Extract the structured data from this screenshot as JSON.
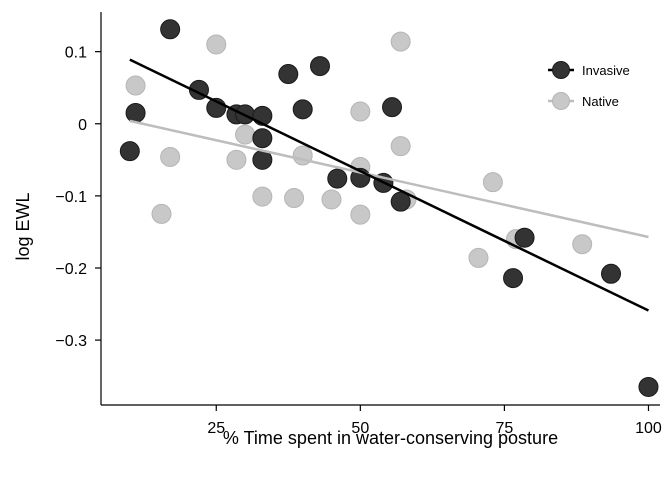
{
  "chart_data": {
    "type": "scatter",
    "title": "",
    "xlabel": "% Time spent in water-conserving posture",
    "ylabel": "log EWL",
    "xlim": [
      5,
      102
    ],
    "ylim": [
      -0.39,
      0.155
    ],
    "x_ticks": [
      25,
      50,
      75,
      100
    ],
    "y_ticks": [
      -0.3,
      -0.2,
      -0.1,
      0,
      0.1
    ],
    "x_tick_labels": [
      "25",
      "50",
      "75",
      "100"
    ],
    "y_tick_labels": [
      "−0.3",
      "−0.2",
      "−0.1",
      "0",
      "0.1"
    ],
    "grid": false,
    "legend_position": "top-right",
    "series": [
      {
        "name": "Native",
        "color": "#c8c8c8",
        "points": [
          [
            11,
            0.053
          ],
          [
            17,
            -0.046
          ],
          [
            15.5,
            -0.125
          ],
          [
            25,
            0.11
          ],
          [
            28.5,
            -0.05
          ],
          [
            30,
            -0.015
          ],
          [
            33,
            -0.101
          ],
          [
            38.5,
            -0.103
          ],
          [
            40,
            -0.044
          ],
          [
            45,
            -0.105
          ],
          [
            50,
            0.017
          ],
          [
            50,
            -0.06
          ],
          [
            50,
            -0.126
          ],
          [
            57,
            0.114
          ],
          [
            57,
            -0.031
          ],
          [
            58,
            -0.105
          ],
          [
            70.5,
            -0.186
          ],
          [
            73,
            -0.081
          ],
          [
            77,
            -0.16
          ],
          [
            88.5,
            -0.167
          ]
        ],
        "fit": [
          [
            10,
            0.004
          ],
          [
            100,
            -0.157
          ]
        ]
      },
      {
        "name": "Invasive",
        "color": "#333333",
        "points": [
          [
            10,
            -0.038
          ],
          [
            11,
            0.015
          ],
          [
            17,
            0.131
          ],
          [
            22,
            0.047
          ],
          [
            25,
            0.022
          ],
          [
            28.5,
            0.013
          ],
          [
            30,
            0.013
          ],
          [
            33,
            0.011
          ],
          [
            33,
            -0.02
          ],
          [
            33,
            -0.05
          ],
          [
            37.5,
            0.069
          ],
          [
            40,
            0.02
          ],
          [
            43,
            0.08
          ],
          [
            46,
            -0.076
          ],
          [
            50,
            -0.075
          ],
          [
            54,
            -0.082
          ],
          [
            55.5,
            0.023
          ],
          [
            57,
            -0.108
          ],
          [
            76.5,
            -0.214
          ],
          [
            78.5,
            -0.158
          ],
          [
            93.5,
            -0.208
          ],
          [
            100,
            -0.365
          ]
        ],
        "fit": [
          [
            10,
            0.089
          ],
          [
            100,
            -0.259
          ]
        ]
      }
    ]
  }
}
